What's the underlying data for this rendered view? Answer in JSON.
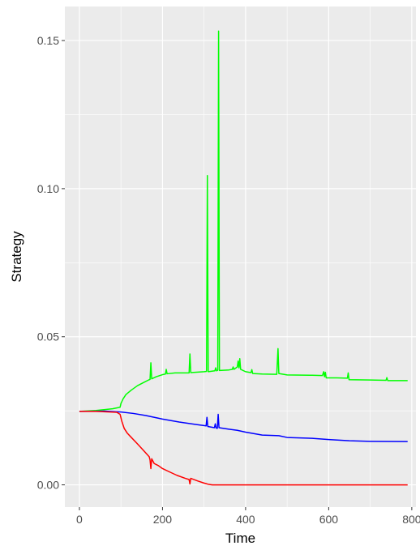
{
  "chart_data": {
    "type": "line",
    "title": "",
    "xlabel": "Time",
    "ylabel": "Strategy",
    "xlim": [
      -35,
      810
    ],
    "ylim": [
      -0.0075,
      0.1615
    ],
    "x_ticks": [
      0,
      200,
      400,
      600,
      800
    ],
    "x_tick_labels": [
      "0",
      "200",
      "400",
      "600",
      "800"
    ],
    "y_ticks": [
      0.0,
      0.05,
      0.1,
      0.15
    ],
    "y_tick_labels": [
      "0.00",
      "0.05",
      "0.10",
      "0.15"
    ],
    "grid": true,
    "legend": "none",
    "series": [
      {
        "color": "#00ff00",
        "points": [
          [
            0,
            0.0248
          ],
          [
            40,
            0.0251
          ],
          [
            80,
            0.0257
          ],
          [
            98,
            0.0262
          ],
          [
            100,
            0.0275
          ],
          [
            105,
            0.029
          ],
          [
            112,
            0.0305
          ],
          [
            125,
            0.032
          ],
          [
            140,
            0.0335
          ],
          [
            158,
            0.0348
          ],
          [
            168,
            0.0355
          ],
          [
            170,
            0.0356
          ],
          [
            172,
            0.0412
          ],
          [
            174,
            0.0358
          ],
          [
            185,
            0.0365
          ],
          [
            200,
            0.0372
          ],
          [
            207,
            0.0374
          ],
          [
            209,
            0.039
          ],
          [
            211,
            0.0375
          ],
          [
            230,
            0.0378
          ],
          [
            264,
            0.0378
          ],
          [
            266,
            0.0442
          ],
          [
            268,
            0.0379
          ],
          [
            300,
            0.0382
          ],
          [
            306,
            0.0383
          ],
          [
            308,
            0.1044
          ],
          [
            310,
            0.0382
          ],
          [
            326,
            0.0385
          ],
          [
            328,
            0.0395
          ],
          [
            330,
            0.0385
          ],
          [
            333,
            0.0387
          ],
          [
            335,
            0.1532
          ],
          [
            337,
            0.0386
          ],
          [
            360,
            0.0388
          ],
          [
            368,
            0.039
          ],
          [
            370,
            0.0398
          ],
          [
            372,
            0.039
          ],
          [
            380,
            0.0398
          ],
          [
            382,
            0.0418
          ],
          [
            384,
            0.0395
          ],
          [
            386,
            0.0426
          ],
          [
            388,
            0.039
          ],
          [
            400,
            0.0382
          ],
          [
            413,
            0.0379
          ],
          [
            415,
            0.0389
          ],
          [
            417,
            0.0376
          ],
          [
            440,
            0.0374
          ],
          [
            475,
            0.0373
          ],
          [
            478,
            0.046
          ],
          [
            480,
            0.0376
          ],
          [
            500,
            0.0371
          ],
          [
            560,
            0.037
          ],
          [
            585,
            0.0369
          ],
          [
            588,
            0.0382
          ],
          [
            590,
            0.0365
          ],
          [
            592,
            0.038
          ],
          [
            594,
            0.0361
          ],
          [
            620,
            0.0361
          ],
          [
            645,
            0.036
          ],
          [
            647,
            0.0378
          ],
          [
            649,
            0.0355
          ],
          [
            700,
            0.0354
          ],
          [
            738,
            0.0353
          ],
          [
            740,
            0.0362
          ],
          [
            742,
            0.0352
          ],
          [
            790,
            0.0352
          ]
        ]
      },
      {
        "color": "#0000ff",
        "points": [
          [
            0,
            0.0248
          ],
          [
            60,
            0.0249
          ],
          [
            100,
            0.0246
          ],
          [
            130,
            0.0241
          ],
          [
            160,
            0.0234
          ],
          [
            200,
            0.0222
          ],
          [
            240,
            0.0212
          ],
          [
            280,
            0.0204
          ],
          [
            305,
            0.0199
          ],
          [
            307,
            0.0228
          ],
          [
            309,
            0.0197
          ],
          [
            325,
            0.0193
          ],
          [
            327,
            0.0206
          ],
          [
            329,
            0.0192
          ],
          [
            332,
            0.0191
          ],
          [
            334,
            0.0238
          ],
          [
            336,
            0.0193
          ],
          [
            360,
            0.0188
          ],
          [
            380,
            0.0184
          ],
          [
            400,
            0.0178
          ],
          [
            440,
            0.0168
          ],
          [
            480,
            0.0166
          ],
          [
            500,
            0.016
          ],
          [
            560,
            0.0157
          ],
          [
            600,
            0.0153
          ],
          [
            650,
            0.0149
          ],
          [
            700,
            0.0147
          ],
          [
            790,
            0.0146
          ]
        ]
      },
      {
        "color": "#ff0000",
        "points": [
          [
            0,
            0.0248
          ],
          [
            40,
            0.0248
          ],
          [
            90,
            0.0245
          ],
          [
            98,
            0.0238
          ],
          [
            102,
            0.0215
          ],
          [
            108,
            0.019
          ],
          [
            115,
            0.0175
          ],
          [
            125,
            0.016
          ],
          [
            140,
            0.0138
          ],
          [
            155,
            0.0115
          ],
          [
            168,
            0.0095
          ],
          [
            170,
            0.0084
          ],
          [
            172,
            0.0055
          ],
          [
            174,
            0.0088
          ],
          [
            180,
            0.0072
          ],
          [
            190,
            0.0065
          ],
          [
            200,
            0.0055
          ],
          [
            215,
            0.0045
          ],
          [
            235,
            0.0032
          ],
          [
            255,
            0.0022
          ],
          [
            264,
            0.0018
          ],
          [
            266,
            0.0003
          ],
          [
            268,
            0.0022
          ],
          [
            285,
            0.0013
          ],
          [
            300,
            0.0006
          ],
          [
            310,
            0.0002
          ],
          [
            320,
            0.0
          ],
          [
            500,
            0.0
          ],
          [
            700,
            0.0
          ],
          [
            790,
            0.0
          ]
        ]
      }
    ]
  }
}
